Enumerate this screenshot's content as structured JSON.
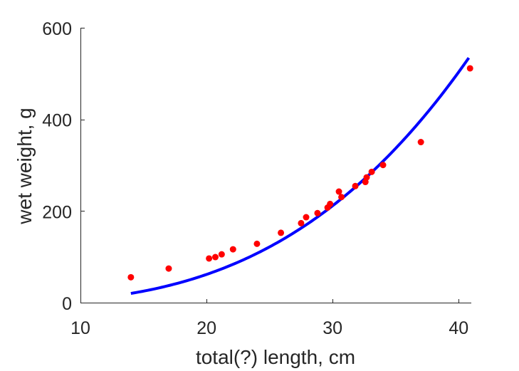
{
  "chart_data": {
    "type": "scatter",
    "xlabel": "total(?) length, cm",
    "ylabel": "wet weight, g",
    "xlim": [
      10,
      41
    ],
    "ylim": [
      0,
      600
    ],
    "xticks": [
      10,
      20,
      30,
      40
    ],
    "yticks": [
      0,
      200,
      400,
      600
    ],
    "grid": false,
    "box": false,
    "series": [
      {
        "kind": "scatter",
        "color": "#ff0000",
        "points": [
          [
            14.0,
            57
          ],
          [
            17.0,
            76
          ],
          [
            20.2,
            98
          ],
          [
            20.7,
            101
          ],
          [
            21.2,
            107
          ],
          [
            22.1,
            118
          ],
          [
            24.0,
            130
          ],
          [
            25.9,
            154
          ],
          [
            27.5,
            175
          ],
          [
            27.9,
            188
          ],
          [
            28.8,
            197
          ],
          [
            29.6,
            209
          ],
          [
            29.8,
            217
          ],
          [
            30.5,
            244
          ],
          [
            30.7,
            232
          ],
          [
            31.8,
            256
          ],
          [
            32.6,
            265
          ],
          [
            32.7,
            275
          ],
          [
            33.1,
            287
          ],
          [
            34.0,
            302
          ],
          [
            37.0,
            352
          ],
          [
            40.9,
            513
          ]
        ]
      },
      {
        "kind": "line",
        "color": "#0000ff",
        "model": "power",
        "a": 0.00789,
        "b": 3.0,
        "x_range": [
          14.0,
          40.8
        ]
      }
    ]
  }
}
